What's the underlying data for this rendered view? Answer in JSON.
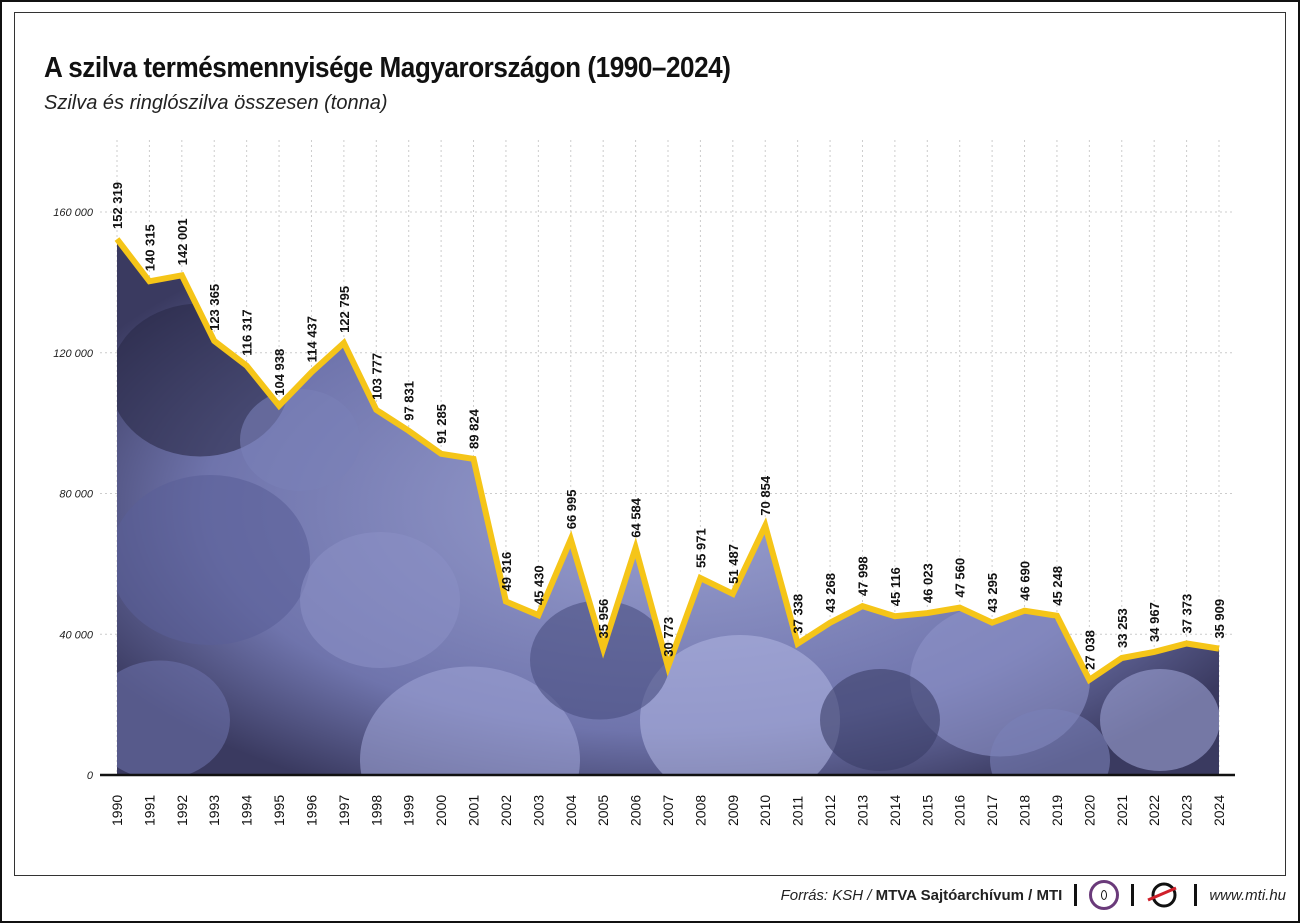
{
  "header": {
    "title": "A szilva termésmennyisége Magyarországon (1990–2024)",
    "subtitle": "Szilva és ringlószilva összesen (tonna)"
  },
  "chart_data": {
    "type": "area",
    "title": "A szilva termésmennyisége Magyarországon (1990–2024)",
    "subtitle": "Szilva és ringlószilva összesen (tonna)",
    "categories": [
      "1990",
      "1991",
      "1992",
      "1993",
      "1994",
      "1995",
      "1996",
      "1997",
      "1998",
      "1999",
      "2000",
      "2001",
      "2002",
      "2003",
      "2004",
      "2005",
      "2006",
      "2007",
      "2008",
      "2009",
      "2010",
      "2011",
      "2012",
      "2013",
      "2014",
      "2015",
      "2016",
      "2017",
      "2018",
      "2019",
      "2020",
      "2021",
      "2022",
      "2023",
      "2024"
    ],
    "values": [
      152319,
      140315,
      142001,
      123365,
      116317,
      104938,
      114437,
      122795,
      103777,
      97831,
      91285,
      89824,
      49316,
      45430,
      66995,
      35956,
      64584,
      30773,
      55971,
      51487,
      70854,
      37338,
      43268,
      47998,
      45116,
      46023,
      47560,
      43295,
      46690,
      45248,
      27038,
      33253,
      34967,
      37373,
      35909
    ],
    "data_labels": [
      "152 319",
      "140 315",
      "142 001",
      "123 365",
      "116 317",
      "104 938",
      "114 437",
      "122 795",
      "103 777",
      "97 831",
      "91 285",
      "89 824",
      "49 316",
      "45 430",
      "66 995",
      "35 956",
      "64 584",
      "30 773",
      "55 971",
      "51 487",
      "70 854",
      "37 338",
      "43 268",
      "47 998",
      "45 116",
      "46 023",
      "47 560",
      "43 295",
      "46 690",
      "45 248",
      "27 038",
      "33 253",
      "34 967",
      "37 373",
      "35 909"
    ],
    "yticks": [
      0,
      40000,
      80000,
      120000,
      160000
    ],
    "ytick_labels": [
      "0",
      "40 000",
      "80 000",
      "120 000",
      "160 000"
    ],
    "ylim": [
      0,
      180000
    ],
    "grid": true,
    "colors": {
      "line": "#f5c518",
      "fill": "#7a80b8",
      "fill_dark": "#2a2a48"
    }
  },
  "footer": {
    "source_prefix": "Forrás: KSH / ",
    "source_bold": "MTVA Sajtóarchívum / MTI",
    "mtva_logo": "MTVA",
    "url": "www.mti.hu"
  }
}
